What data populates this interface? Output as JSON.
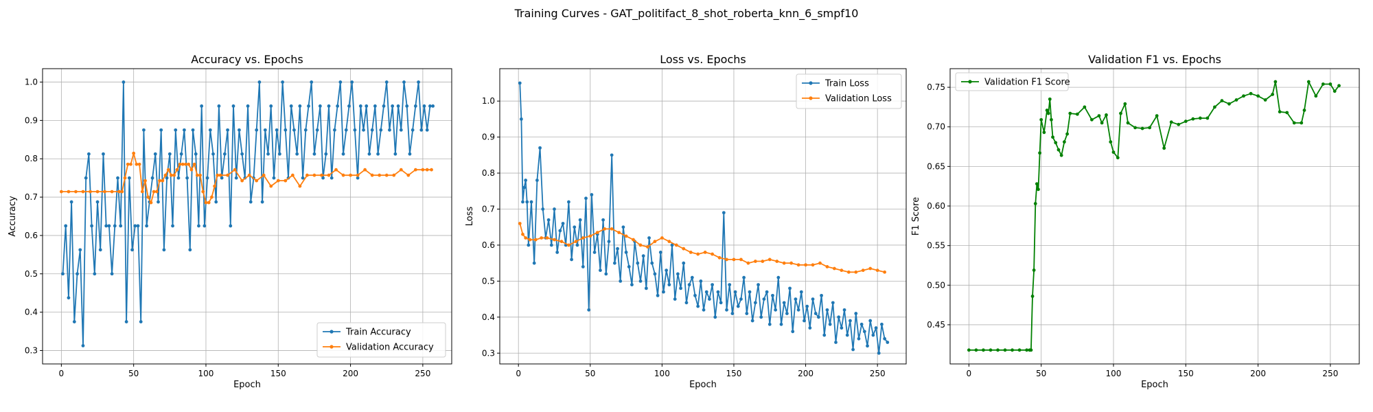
{
  "figure": {
    "suptitle": "Training Curves - GAT_politifact_8_shot_roberta_knn_6_smpf10"
  },
  "colors": {
    "blue": "#1f77b4",
    "orange": "#ff7f0e",
    "green": "#008000"
  },
  "chart_data": [
    {
      "type": "line",
      "title": "Accuracy vs. Epochs",
      "xlabel": "Epoch",
      "ylabel": "Accuracy",
      "xlim": [
        -13,
        270
      ],
      "ylim": [
        0.265,
        1.035
      ],
      "xticks": [
        0,
        50,
        100,
        150,
        200,
        250
      ],
      "yticks": [
        0.3,
        0.4,
        0.5,
        0.6,
        0.7,
        0.8,
        0.9,
        1.0
      ],
      "ytick_labels": [
        "0.3",
        "0.4",
        "0.5",
        "0.6",
        "0.7",
        "0.8",
        "0.9",
        "1.0"
      ],
      "grid": true,
      "legend_position": "lower-right",
      "series": [
        {
          "name": "Train Accuracy",
          "color": "#1f77b4",
          "x": [
            1,
            3,
            5,
            7,
            9,
            11,
            13,
            15,
            17,
            19,
            21,
            23,
            25,
            27,
            29,
            31,
            33,
            35,
            37,
            39,
            41,
            43,
            45,
            47,
            49,
            51,
            53,
            55,
            57,
            59,
            61,
            63,
            65,
            67,
            69,
            71,
            73,
            75,
            77,
            79,
            81,
            83,
            85,
            87,
            89,
            91,
            93,
            95,
            97,
            99,
            101,
            103,
            105,
            107,
            109,
            111,
            113,
            115,
            117,
            119,
            121,
            123,
            125,
            127,
            129,
            131,
            133,
            135,
            137,
            139,
            141,
            143,
            145,
            147,
            149,
            151,
            153,
            155,
            157,
            159,
            161,
            163,
            165,
            167,
            169,
            171,
            173,
            175,
            177,
            179,
            181,
            183,
            185,
            187,
            189,
            191,
            193,
            195,
            197,
            199,
            201,
            203,
            205,
            207,
            209,
            211,
            213,
            215,
            217,
            219,
            221,
            223,
            225,
            227,
            229,
            231,
            233,
            235,
            237,
            239,
            241,
            243,
            245,
            247,
            249,
            251,
            253,
            255,
            257
          ],
          "y": [
            0.5,
            0.625,
            0.4375,
            0.6875,
            0.375,
            0.5,
            0.5625,
            0.3125,
            0.75,
            0.8125,
            0.625,
            0.5,
            0.6875,
            0.5625,
            0.8125,
            0.625,
            0.625,
            0.5,
            0.625,
            0.75,
            0.625,
            1.0,
            0.375,
            0.75,
            0.5625,
            0.625,
            0.625,
            0.375,
            0.875,
            0.625,
            0.6875,
            0.75,
            0.8125,
            0.6875,
            0.875,
            0.5625,
            0.75,
            0.8125,
            0.625,
            0.875,
            0.75,
            0.8125,
            0.875,
            0.75,
            0.5625,
            0.875,
            0.8125,
            0.625,
            0.9375,
            0.625,
            0.75,
            0.875,
            0.8125,
            0.6875,
            0.9375,
            0.75,
            0.8125,
            0.875,
            0.625,
            0.9375,
            0.75,
            0.875,
            0.8125,
            0.75,
            0.9375,
            0.6875,
            0.75,
            0.875,
            1.0,
            0.6875,
            0.875,
            0.8125,
            0.9375,
            0.75,
            0.875,
            0.8125,
            1.0,
            0.875,
            0.75,
            0.9375,
            0.875,
            0.8125,
            0.9375,
            0.75,
            0.875,
            0.9375,
            1.0,
            0.8125,
            0.875,
            0.9375,
            0.75,
            0.8125,
            0.9375,
            0.75,
            0.875,
            0.9375,
            1.0,
            0.8125,
            0.875,
            0.9375,
            1.0,
            0.875,
            0.75,
            0.9375,
            0.875,
            0.9375,
            0.8125,
            0.875,
            0.9375,
            0.8125,
            0.875,
            0.9375,
            1.0,
            0.875,
            0.9375,
            0.8125,
            0.9375,
            0.875,
            1.0,
            0.9375,
            0.8125,
            0.875,
            0.9375,
            1.0,
            0.875,
            0.9375,
            0.875,
            0.9375,
            0.9375
          ]
        },
        {
          "name": "Validation Accuracy",
          "color": "#ff7f0e",
          "x": [
            0,
            5,
            10,
            15,
            20,
            25,
            30,
            35,
            40,
            42,
            44,
            46,
            48,
            50,
            52,
            54,
            56,
            58,
            60,
            62,
            64,
            66,
            68,
            70,
            72,
            74,
            76,
            78,
            80,
            82,
            84,
            86,
            88,
            90,
            92,
            94,
            96,
            98,
            100,
            102,
            104,
            106,
            108,
            110,
            115,
            120,
            125,
            130,
            135,
            140,
            145,
            150,
            155,
            160,
            165,
            170,
            175,
            180,
            185,
            190,
            195,
            200,
            205,
            210,
            215,
            220,
            225,
            230,
            235,
            240,
            245,
            250,
            253,
            256
          ],
          "y": [
            0.7143,
            0.7143,
            0.7143,
            0.7143,
            0.7143,
            0.7143,
            0.7143,
            0.7143,
            0.7143,
            0.7143,
            0.75,
            0.7857,
            0.7857,
            0.8143,
            0.7857,
            0.7857,
            0.7143,
            0.7429,
            0.7,
            0.6857,
            0.7143,
            0.7143,
            0.7429,
            0.7429,
            0.7571,
            0.7714,
            0.7571,
            0.7571,
            0.7714,
            0.7857,
            0.7857,
            0.7857,
            0.7857,
            0.7714,
            0.7857,
            0.7571,
            0.7571,
            0.7143,
            0.6857,
            0.6857,
            0.7,
            0.7286,
            0.7571,
            0.7571,
            0.7571,
            0.7714,
            0.7429,
            0.7571,
            0.7429,
            0.7571,
            0.7286,
            0.7429,
            0.7429,
            0.7571,
            0.7286,
            0.7571,
            0.7571,
            0.7571,
            0.7571,
            0.7714,
            0.7571,
            0.7571,
            0.7571,
            0.7714,
            0.7571,
            0.7571,
            0.7571,
            0.7571,
            0.7714,
            0.7571,
            0.7714,
            0.7714,
            0.7714,
            0.7714
          ]
        }
      ]
    },
    {
      "type": "line",
      "title": "Loss vs. Epochs",
      "xlabel": "Epoch",
      "ylabel": "Loss",
      "xlim": [
        -13,
        270
      ],
      "ylim": [
        0.27,
        1.09
      ],
      "xticks": [
        0,
        50,
        100,
        150,
        200,
        250
      ],
      "yticks": [
        0.3,
        0.4,
        0.5,
        0.6,
        0.7,
        0.8,
        0.9,
        1.0
      ],
      "ytick_labels": [
        "0.3",
        "0.4",
        "0.5",
        "0.6",
        "0.7",
        "0.8",
        "0.9",
        "1.0"
      ],
      "grid": true,
      "legend_position": "upper-right",
      "series": [
        {
          "name": "Train Loss",
          "color": "#1f77b4",
          "x": [
            1,
            2,
            3,
            4,
            5,
            6,
            7,
            9,
            11,
            13,
            15,
            17,
            19,
            21,
            23,
            25,
            27,
            29,
            31,
            33,
            35,
            37,
            39,
            41,
            43,
            45,
            47,
            49,
            51,
            53,
            55,
            57,
            59,
            61,
            63,
            65,
            67,
            69,
            71,
            73,
            75,
            77,
            79,
            81,
            83,
            85,
            87,
            89,
            91,
            93,
            95,
            97,
            99,
            101,
            103,
            105,
            107,
            109,
            111,
            113,
            115,
            117,
            119,
            121,
            123,
            125,
            127,
            129,
            131,
            133,
            135,
            137,
            139,
            141,
            143,
            145,
            147,
            149,
            151,
            153,
            155,
            157,
            159,
            161,
            163,
            165,
            167,
            169,
            171,
            173,
            175,
            177,
            179,
            181,
            183,
            185,
            187,
            189,
            191,
            193,
            195,
            197,
            199,
            201,
            203,
            205,
            207,
            209,
            211,
            213,
            215,
            217,
            219,
            221,
            223,
            225,
            227,
            229,
            231,
            233,
            235,
            237,
            239,
            241,
            243,
            245,
            247,
            249,
            251,
            253,
            255,
            257
          ],
          "y": [
            1.05,
            0.95,
            0.72,
            0.76,
            0.78,
            0.72,
            0.6,
            0.72,
            0.55,
            0.78,
            0.87,
            0.7,
            0.62,
            0.67,
            0.6,
            0.7,
            0.58,
            0.64,
            0.66,
            0.6,
            0.72,
            0.56,
            0.65,
            0.6,
            0.67,
            0.54,
            0.73,
            0.42,
            0.74,
            0.58,
            0.63,
            0.53,
            0.67,
            0.52,
            0.61,
            0.85,
            0.55,
            0.59,
            0.5,
            0.65,
            0.58,
            0.54,
            0.49,
            0.61,
            0.55,
            0.5,
            0.57,
            0.48,
            0.62,
            0.55,
            0.52,
            0.46,
            0.58,
            0.47,
            0.53,
            0.49,
            0.6,
            0.45,
            0.52,
            0.48,
            0.55,
            0.44,
            0.49,
            0.51,
            0.46,
            0.43,
            0.5,
            0.42,
            0.47,
            0.45,
            0.49,
            0.4,
            0.47,
            0.44,
            0.69,
            0.42,
            0.49,
            0.41,
            0.47,
            0.43,
            0.45,
            0.51,
            0.41,
            0.47,
            0.39,
            0.44,
            0.49,
            0.4,
            0.45,
            0.47,
            0.38,
            0.46,
            0.42,
            0.51,
            0.38,
            0.44,
            0.41,
            0.48,
            0.36,
            0.45,
            0.42,
            0.47,
            0.39,
            0.43,
            0.37,
            0.45,
            0.41,
            0.4,
            0.46,
            0.35,
            0.42,
            0.38,
            0.44,
            0.33,
            0.4,
            0.37,
            0.42,
            0.35,
            0.39,
            0.31,
            0.41,
            0.34,
            0.38,
            0.36,
            0.32,
            0.39,
            0.35,
            0.37,
            0.3,
            0.38,
            0.34,
            0.33
          ]
        },
        {
          "name": "Validation Loss",
          "color": "#ff7f0e",
          "x": [
            1,
            3,
            5,
            8,
            12,
            16,
            20,
            25,
            30,
            35,
            40,
            45,
            50,
            55,
            60,
            65,
            70,
            75,
            80,
            85,
            90,
            95,
            100,
            105,
            110,
            115,
            120,
            125,
            130,
            135,
            140,
            145,
            150,
            155,
            160,
            165,
            170,
            175,
            180,
            185,
            190,
            195,
            200,
            205,
            210,
            215,
            220,
            225,
            230,
            235,
            240,
            245,
            250,
            255
          ],
          "y": [
            0.66,
            0.63,
            0.62,
            0.615,
            0.615,
            0.62,
            0.62,
            0.615,
            0.61,
            0.6,
            0.61,
            0.62,
            0.625,
            0.635,
            0.645,
            0.645,
            0.635,
            0.625,
            0.615,
            0.6,
            0.595,
            0.61,
            0.62,
            0.61,
            0.6,
            0.59,
            0.58,
            0.575,
            0.58,
            0.575,
            0.565,
            0.56,
            0.56,
            0.56,
            0.55,
            0.555,
            0.555,
            0.56,
            0.555,
            0.55,
            0.55,
            0.545,
            0.545,
            0.545,
            0.55,
            0.54,
            0.535,
            0.53,
            0.525,
            0.525,
            0.53,
            0.535,
            0.53,
            0.525
          ]
        }
      ]
    },
    {
      "type": "line",
      "title": "Validation F1 vs. Epochs",
      "xlabel": "Epoch",
      "ylabel": "F1 Score",
      "xlim": [
        -13,
        270
      ],
      "ylim": [
        0.4005,
        0.7735
      ],
      "xticks": [
        0,
        50,
        100,
        150,
        200,
        250
      ],
      "yticks": [
        0.45,
        0.5,
        0.55,
        0.6,
        0.65,
        0.7,
        0.75
      ],
      "ytick_labels": [
        "0.45",
        "0.50",
        "0.55",
        "0.60",
        "0.65",
        "0.70",
        "0.75"
      ],
      "grid": true,
      "legend_position": "upper-left",
      "series": [
        {
          "name": "Validation F1 Score",
          "color": "#008000",
          "x": [
            0,
            5,
            10,
            15,
            20,
            25,
            30,
            35,
            40,
            42,
            43,
            44,
            45,
            46,
            47,
            48,
            49,
            50,
            52,
            54,
            55,
            56,
            57,
            58,
            60,
            62,
            64,
            66,
            68,
            70,
            75,
            80,
            85,
            90,
            92,
            95,
            98,
            100,
            103,
            105,
            108,
            110,
            115,
            120,
            125,
            130,
            135,
            140,
            145,
            150,
            155,
            160,
            165,
            170,
            175,
            180,
            185,
            190,
            195,
            200,
            205,
            210,
            212,
            215,
            220,
            225,
            230,
            232,
            235,
            240,
            245,
            250,
            253,
            256
          ],
          "y": [
            0.418,
            0.418,
            0.418,
            0.418,
            0.418,
            0.418,
            0.418,
            0.418,
            0.418,
            0.418,
            0.418,
            0.486,
            0.519,
            0.603,
            0.628,
            0.621,
            0.667,
            0.709,
            0.693,
            0.721,
            0.717,
            0.735,
            0.709,
            0.687,
            0.68,
            0.671,
            0.664,
            0.681,
            0.691,
            0.717,
            0.716,
            0.725,
            0.709,
            0.714,
            0.705,
            0.715,
            0.681,
            0.668,
            0.661,
            0.717,
            0.729,
            0.705,
            0.699,
            0.698,
            0.699,
            0.714,
            0.673,
            0.706,
            0.703,
            0.707,
            0.71,
            0.711,
            0.711,
            0.725,
            0.733,
            0.729,
            0.734,
            0.739,
            0.742,
            0.739,
            0.734,
            0.741,
            0.757,
            0.719,
            0.718,
            0.705,
            0.705,
            0.721,
            0.757,
            0.739,
            0.754,
            0.754,
            0.745,
            0.752
          ]
        }
      ]
    }
  ]
}
